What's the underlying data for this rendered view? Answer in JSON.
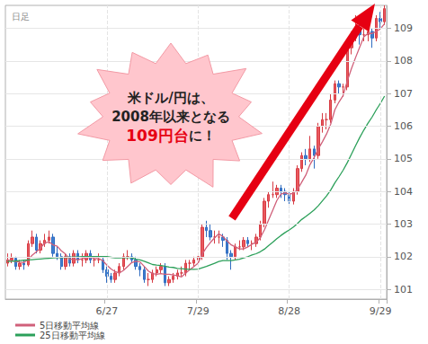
{
  "chart_data": {
    "type": "candlestick",
    "title": "日足",
    "annotation": {
      "text": [
        "米ドル/円は、",
        "2008年以来となる"
      ],
      "highlight": "109円台",
      "after": "に！"
    },
    "categories": [
      null,
      null,
      null,
      null,
      null,
      null,
      null,
      null,
      null,
      null,
      null,
      null,
      null,
      null,
      null,
      null,
      null,
      null,
      null,
      null,
      null,
      null,
      null,
      null,
      "6/27",
      null,
      null,
      null,
      null,
      null,
      null,
      null,
      null,
      null,
      null,
      null,
      null,
      null,
      null,
      null,
      null,
      null,
      null,
      null,
      null,
      null,
      "7/29",
      null,
      null,
      null,
      null,
      null,
      null,
      null,
      null,
      null,
      null,
      null,
      null,
      null,
      null,
      null,
      null,
      null,
      null,
      null,
      null,
      null,
      "8/28",
      null,
      null,
      null,
      null,
      null,
      null,
      null,
      null,
      null,
      null,
      null,
      null,
      null,
      null,
      null,
      null,
      null,
      null,
      null,
      null,
      null,
      "9/29",
      null
    ],
    "series": [
      {
        "type": "candlestick",
        "values": [
          [
            101.8,
            102.1,
            101.7,
            101.9
          ],
          [
            101.9,
            102.1,
            101.8,
            101.95
          ],
          [
            101.95,
            102.0,
            101.6,
            101.7
          ],
          [
            101.7,
            101.9,
            101.6,
            101.8
          ],
          [
            101.8,
            101.9,
            101.6,
            101.75
          ],
          [
            101.75,
            102.5,
            101.7,
            102.4
          ],
          [
            102.4,
            102.8,
            102.3,
            102.6
          ],
          [
            102.6,
            102.7,
            102.1,
            102.2
          ],
          [
            102.2,
            102.5,
            102.1,
            102.4
          ],
          [
            102.4,
            102.7,
            102.3,
            102.5
          ],
          [
            102.5,
            102.8,
            102.4,
            102.6
          ],
          [
            102.6,
            102.7,
            102.0,
            102.1
          ],
          [
            102.1,
            102.3,
            101.9,
            102.0
          ],
          [
            102.0,
            102.1,
            101.6,
            101.7
          ],
          [
            101.7,
            102.1,
            101.6,
            102.0
          ],
          [
            102.0,
            102.1,
            101.7,
            101.8
          ],
          [
            101.8,
            102.2,
            101.7,
            102.1
          ],
          [
            102.1,
            102.2,
            101.8,
            101.9
          ],
          [
            101.9,
            102.1,
            101.7,
            101.9
          ],
          [
            101.9,
            102.2,
            101.8,
            102.1
          ],
          [
            102.1,
            102.2,
            101.8,
            101.9
          ],
          [
            101.9,
            102.0,
            101.7,
            101.9
          ],
          [
            101.9,
            102.1,
            101.8,
            101.9
          ],
          [
            101.9,
            102.0,
            101.5,
            101.6
          ],
          [
            101.6,
            101.7,
            101.2,
            101.4
          ],
          [
            101.4,
            101.5,
            101.2,
            101.3
          ],
          [
            101.3,
            101.6,
            101.2,
            101.5
          ],
          [
            101.5,
            101.8,
            101.4,
            101.7
          ],
          [
            101.7,
            102.1,
            101.6,
            102.0
          ],
          [
            102.0,
            102.2,
            101.9,
            102.0
          ],
          [
            102.0,
            102.1,
            101.8,
            101.9
          ],
          [
            101.9,
            102.0,
            101.6,
            101.7
          ],
          [
            101.7,
            101.8,
            101.4,
            101.6
          ],
          [
            101.6,
            101.7,
            101.2,
            101.3
          ],
          [
            101.3,
            101.5,
            101.1,
            101.3
          ],
          [
            101.3,
            101.6,
            101.2,
            101.5
          ],
          [
            101.5,
            101.7,
            101.4,
            101.6
          ],
          [
            101.6,
            101.8,
            101.5,
            101.7
          ],
          [
            101.7,
            101.8,
            101.1,
            101.2
          ],
          [
            101.2,
            101.4,
            101.1,
            101.3
          ],
          [
            101.3,
            101.5,
            101.2,
            101.4
          ],
          [
            101.4,
            101.6,
            101.3,
            101.5
          ],
          [
            101.5,
            101.7,
            101.4,
            101.5
          ],
          [
            101.5,
            101.9,
            101.4,
            101.8
          ],
          [
            101.8,
            101.9,
            101.6,
            101.8
          ],
          [
            101.8,
            102.0,
            101.7,
            101.9
          ],
          [
            101.9,
            102.1,
            101.8,
            102.0
          ],
          [
            102.0,
            103.0,
            101.9,
            102.9
          ],
          [
            102.9,
            103.1,
            102.6,
            102.8
          ],
          [
            102.8,
            103.0,
            102.5,
            102.6
          ],
          [
            102.6,
            102.8,
            102.4,
            102.6
          ],
          [
            102.6,
            102.8,
            102.4,
            102.6
          ],
          [
            102.6,
            102.7,
            102.3,
            102.5
          ],
          [
            102.5,
            102.6,
            101.9,
            102.1
          ],
          [
            102.1,
            102.2,
            101.6,
            102.0
          ],
          [
            102.0,
            102.4,
            101.9,
            102.3
          ],
          [
            102.3,
            102.5,
            102.2,
            102.3
          ],
          [
            102.3,
            102.6,
            102.2,
            102.5
          ],
          [
            102.5,
            102.6,
            102.3,
            102.4
          ],
          [
            102.4,
            102.5,
            102.2,
            102.4
          ],
          [
            102.4,
            102.7,
            102.3,
            102.6
          ],
          [
            102.6,
            103.1,
            102.5,
            103.0
          ],
          [
            103.0,
            103.8,
            102.9,
            103.7
          ],
          [
            103.7,
            104.0,
            103.5,
            103.9
          ],
          [
            103.9,
            104.3,
            103.8,
            103.9
          ],
          [
            103.9,
            104.2,
            103.8,
            104.1
          ],
          [
            104.1,
            104.2,
            103.8,
            104.0
          ],
          [
            104.0,
            104.1,
            103.7,
            103.9
          ],
          [
            103.9,
            104.0,
            103.5,
            103.7
          ],
          [
            103.7,
            104.1,
            103.6,
            104.0
          ],
          [
            104.0,
            104.8,
            103.9,
            104.7
          ],
          [
            104.7,
            105.2,
            104.6,
            105.1
          ],
          [
            105.1,
            105.3,
            104.8,
            105.0
          ],
          [
            105.0,
            105.7,
            104.9,
            105.3
          ],
          [
            105.3,
            105.4,
            104.7,
            105.1
          ],
          [
            105.1,
            106.1,
            105.0,
            106.0
          ],
          [
            106.0,
            106.4,
            105.8,
            106.2
          ],
          [
            106.2,
            106.4,
            105.9,
            106.2
          ],
          [
            106.2,
            107.0,
            106.1,
            106.8
          ],
          [
            106.8,
            107.4,
            106.7,
            107.3
          ],
          [
            107.3,
            107.4,
            107.0,
            107.2
          ],
          [
            107.2,
            107.3,
            106.9,
            107.2
          ],
          [
            107.2,
            108.5,
            107.1,
            108.4
          ],
          [
            108.4,
            108.9,
            108.2,
            108.7
          ],
          [
            108.7,
            109.4,
            108.6,
            109.0
          ],
          [
            109.0,
            109.1,
            108.5,
            108.8
          ],
          [
            108.8,
            109.1,
            108.6,
            108.8
          ],
          [
            108.8,
            109.2,
            108.6,
            108.9
          ],
          [
            108.9,
            109.0,
            108.4,
            108.7
          ],
          [
            108.7,
            109.4,
            108.6,
            109.3
          ],
          [
            109.3,
            109.5,
            109.0,
            109.2
          ],
          [
            109.2,
            109.7,
            109.1,
            109.6
          ]
        ]
      },
      {
        "type": "line",
        "name": "5日移動平均線",
        "color": "#d0607a",
        "values": [
          101.9,
          101.88,
          101.85,
          101.83,
          101.82,
          101.92,
          102.05,
          102.15,
          102.27,
          102.42,
          102.46,
          102.36,
          102.32,
          102.18,
          102.08,
          101.92,
          101.92,
          101.9,
          101.94,
          101.96,
          101.98,
          101.94,
          101.94,
          101.88,
          101.74,
          101.62,
          101.54,
          101.5,
          101.58,
          101.7,
          101.82,
          101.86,
          101.84,
          101.7,
          101.56,
          101.48,
          101.46,
          101.48,
          101.46,
          101.46,
          101.44,
          101.42,
          101.38,
          101.5,
          101.6,
          101.7,
          101.8,
          102.08,
          102.28,
          102.44,
          102.58,
          102.7,
          102.62,
          102.48,
          102.36,
          102.3,
          102.24,
          102.24,
          102.3,
          102.38,
          102.44,
          102.58,
          102.82,
          103.12,
          103.42,
          103.72,
          103.92,
          103.96,
          103.92,
          103.94,
          104.06,
          104.28,
          104.5,
          104.82,
          105.04,
          105.3,
          105.52,
          105.76,
          106.06,
          106.5,
          106.74,
          106.94,
          107.38,
          107.76,
          108.1,
          108.42,
          108.74,
          108.84,
          108.84,
          108.9,
          108.98,
          109.14
        ]
      },
      {
        "type": "line",
        "name": "25日移動平均線",
        "color": "#2ca05a",
        "values": [
          101.85,
          101.86,
          101.87,
          101.88,
          101.89,
          101.9,
          101.91,
          101.92,
          101.93,
          101.94,
          101.95,
          101.96,
          101.97,
          101.97,
          101.98,
          101.98,
          101.99,
          101.99,
          102.0,
          102.0,
          102.0,
          102.0,
          102.0,
          102.0,
          102.0,
          101.98,
          101.96,
          101.96,
          101.97,
          101.98,
          101.96,
          101.92,
          101.9,
          101.86,
          101.81,
          101.76,
          101.74,
          101.73,
          101.71,
          101.68,
          101.67,
          101.64,
          101.63,
          101.62,
          101.61,
          101.61,
          101.62,
          101.66,
          101.7,
          101.75,
          101.8,
          101.85,
          101.88,
          101.88,
          101.88,
          101.9,
          101.92,
          101.96,
          102.0,
          102.05,
          102.09,
          102.15,
          102.23,
          102.34,
          102.44,
          102.55,
          102.65,
          102.74,
          102.82,
          102.91,
          103.02,
          103.14,
          103.23,
          103.33,
          103.43,
          103.56,
          103.71,
          103.86,
          104.04,
          104.26,
          104.45,
          104.65,
          104.88,
          105.14,
          105.4,
          105.65,
          105.88,
          106.09,
          106.28,
          106.5,
          106.7,
          106.92
        ]
      }
    ],
    "ylim": [
      100.7,
      109.7
    ],
    "yticks": [
      101,
      102,
      103,
      104,
      105,
      106,
      107,
      108,
      109
    ],
    "grid": true,
    "legend": "bottom"
  }
}
